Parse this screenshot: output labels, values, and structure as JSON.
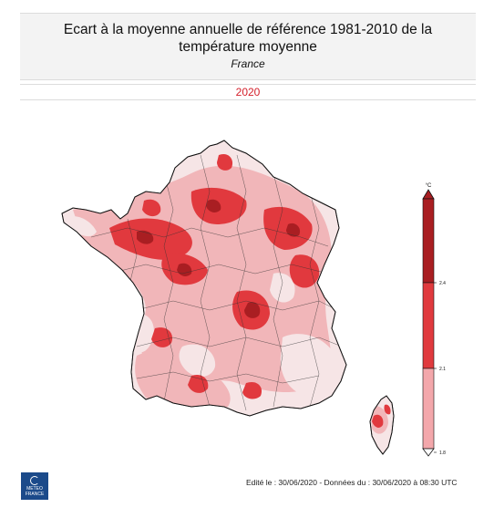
{
  "header": {
    "title_line1": "Ecart à la moyenne annuelle de référence 1981-2010 de la",
    "title_line2": "température moyenne",
    "subtitle": "France"
  },
  "year": {
    "label": "2020",
    "color": "#d4202b"
  },
  "legend": {
    "unit": "°C",
    "ticks": [
      "2.4",
      "2.1",
      "1.8"
    ],
    "colors": {
      "top": "#a91e22",
      "middle": "#e03a3e",
      "bottom": "#f3a7ab"
    }
  },
  "map": {
    "palette": {
      "very_light": "#f6e5e6",
      "light": "#f1b6b9",
      "medium": "#e1393e",
      "dark": "#a91e22"
    }
  },
  "footer": {
    "edit_info": "Edité le : 30/06/2020 - Données du : 30/06/2020 à 08:30 UTC"
  },
  "logo": {
    "line1": "METEO",
    "line2": "FRANCE",
    "background": "#1b4a8a"
  }
}
